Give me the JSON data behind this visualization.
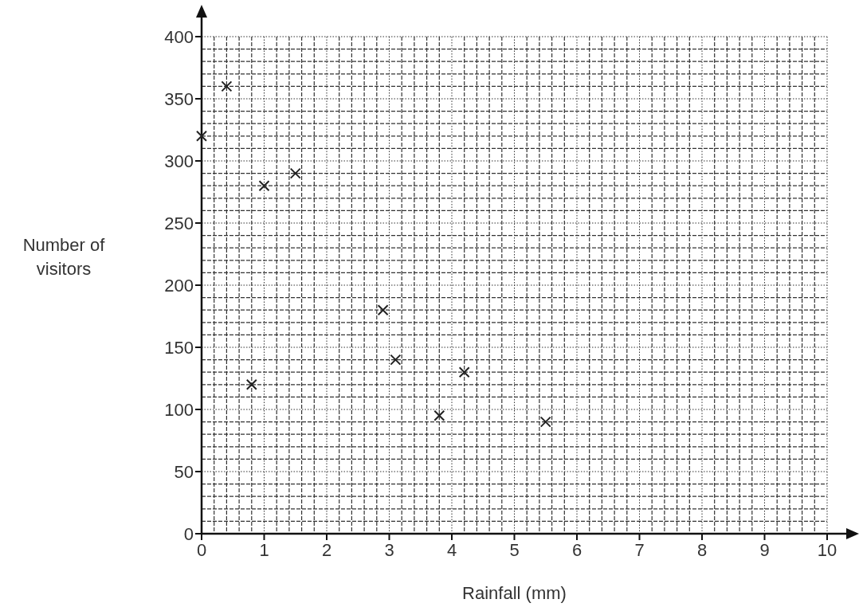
{
  "chart_data": {
    "type": "scatter",
    "xlabel": "Rainfall (mm)",
    "ylabel": "Number of visitors",
    "x": [
      0,
      0.4,
      0.8,
      1,
      1.5,
      2.9,
      3.1,
      3.8,
      4.2,
      5.5
    ],
    "values": [
      320,
      360,
      120,
      280,
      290,
      180,
      140,
      95,
      130,
      90
    ],
    "color": "#222222",
    "marker": "cross",
    "grid": true,
    "xlim": [
      0,
      10
    ],
    "xticks": [
      0,
      1,
      2,
      3,
      4,
      5,
      6,
      7,
      8,
      9,
      10
    ],
    "ylim": [
      0,
      400
    ],
    "yticks": [
      0,
      50,
      100,
      150,
      200,
      250,
      300,
      350,
      400
    ]
  }
}
